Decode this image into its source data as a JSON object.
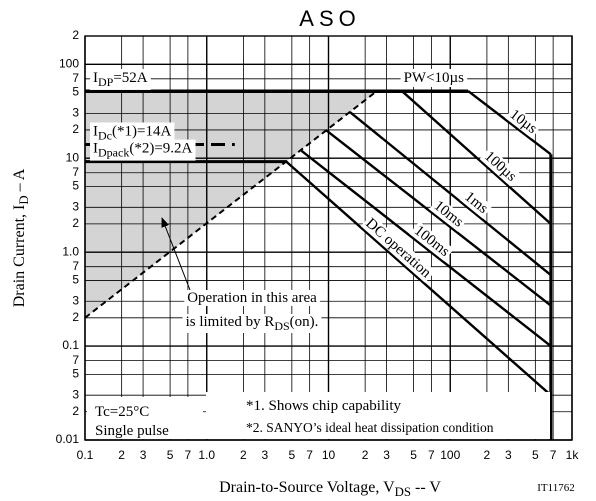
{
  "chart_data": {
    "type": "line",
    "title": "ASO",
    "xlabel": [
      "Drain-to-Source Voltage, V",
      "DS",
      " -- V"
    ],
    "ylabel": [
      "Drain Current, I",
      "D",
      " – A"
    ],
    "log_x": true,
    "log_y": true,
    "grid": true,
    "xlim": [
      0.1,
      1000
    ],
    "ylim": [
      0.01,
      200
    ],
    "xticks": [
      0.1,
      {
        "value": 0.2,
        "label": "2"
      },
      {
        "value": 0.3,
        "label": "3"
      },
      {
        "value": 0.5,
        "label": "5"
      },
      {
        "value": 0.7,
        "label": "7"
      },
      {
        "value": 1,
        "label": "1.0"
      },
      2,
      3,
      5,
      7,
      10,
      {
        "value": 20,
        "label": "2"
      },
      {
        "value": 30,
        "label": "3"
      },
      {
        "value": 50,
        "label": "5"
      },
      {
        "value": 70,
        "label": "7"
      },
      100,
      {
        "value": 200,
        "label": "2"
      },
      {
        "value": 300,
        "label": "3"
      },
      {
        "value": 500,
        "label": "5"
      },
      {
        "value": 700,
        "label": "7"
      },
      {
        "value": 1000,
        "label": "1k"
      }
    ],
    "yticks": [
      0.01,
      {
        "value": 0.02,
        "label": "2"
      },
      {
        "value": 0.03,
        "label": "3"
      },
      {
        "value": 0.05,
        "label": "5"
      },
      {
        "value": 0.07,
        "label": "7"
      },
      0.1,
      {
        "value": 0.2,
        "label": "2"
      },
      {
        "value": 0.3,
        "label": "3"
      },
      {
        "value": 0.5,
        "label": "5"
      },
      {
        "value": 0.7,
        "label": "7"
      },
      {
        "value": 1,
        "label": "1.0"
      },
      2,
      3,
      5,
      7,
      10,
      {
        "value": 20,
        "label": "2"
      },
      {
        "value": 30,
        "label": "3"
      },
      {
        "value": 50,
        "label": "5"
      },
      {
        "value": 70,
        "label": "7"
      },
      100,
      {
        "value": 200,
        "label": "2"
      }
    ],
    "hlimits": [
      {
        "label": [
          "I",
          "DP",
          "=52A"
        ],
        "value": 52,
        "x": [
          0.1,
          140
        ],
        "style": "solid"
      },
      {
        "label": [
          "I",
          "Dc",
          "(*1)=14A"
        ],
        "value": 14,
        "x": [
          0.1,
          1.7
        ],
        "style": "dashed"
      },
      {
        "label": [
          "I",
          "Dpack",
          "(*2)=9.2A"
        ],
        "value": 9.2,
        "x": [
          0.1,
          4.5
        ],
        "style": "solid"
      }
    ],
    "pw_label": "PW<10µs",
    "rds_line": {
      "x": [
        0.1,
        25
      ],
      "y": [
        0.2,
        52
      ]
    },
    "vlimit": {
      "x": [
        670,
        670
      ],
      "y": [
        11,
        0.01
      ]
    },
    "series": [
      {
        "name": "10µs",
        "x": [
          140,
          670
        ],
        "values": [
          52,
          11
        ]
      },
      {
        "name": "100µs",
        "x": [
          40,
          670
        ],
        "values": [
          52,
          2
        ]
      },
      {
        "name": "1ms",
        "x": [
          15,
          670
        ],
        "values": [
          31,
          0.57
        ]
      },
      {
        "name": "10ms",
        "x": [
          9.5,
          670
        ],
        "values": [
          20,
          0.27
        ]
      },
      {
        "name": "100ms",
        "x": [
          6,
          670
        ],
        "values": [
          12,
          0.1
        ]
      },
      {
        "name": "DC operation",
        "x": [
          4.5,
          670
        ],
        "values": [
          9.2,
          0.03
        ]
      }
    ],
    "annotation": [
      [
        "Operation in this area"
      ],
      [
        "is limited by R",
        "DS",
        "(on)."
      ]
    ],
    "conditions": [
      "Tc=25°C",
      "Single pulse"
    ],
    "notes": [
      "*1. Shows chip capability",
      "*2. SANYO’s ideal heat dissipation condition"
    ],
    "code": "IT11762",
    "color": "#000000",
    "area_color": "#d4d4d4"
  }
}
